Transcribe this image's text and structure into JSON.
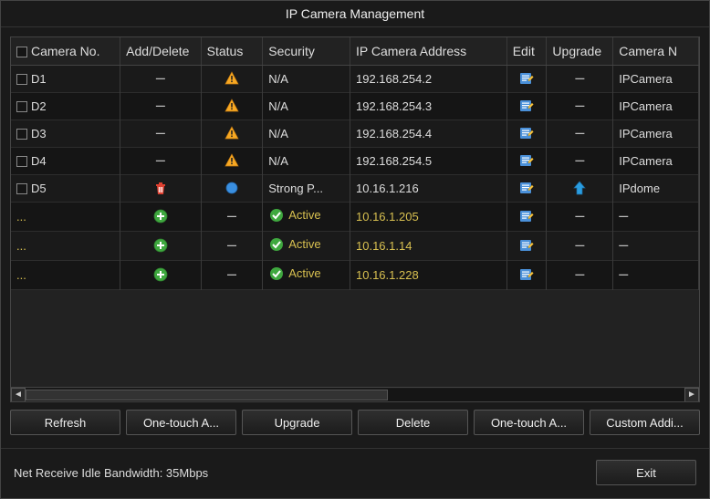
{
  "window": {
    "title": "IP Camera Management"
  },
  "columns": {
    "camera_no": "Camera No.",
    "add_delete": "Add/Delete",
    "status": "Status",
    "security": "Security",
    "ip_address": "IP Camera Address",
    "edit": "Edit",
    "upgrade": "Upgrade",
    "camera_n": "Camera N"
  },
  "column_widths": {
    "camera_no": 115,
    "add_delete": 85,
    "status": 65,
    "security": 92,
    "ip_address": 165,
    "edit": 42,
    "upgrade": 70,
    "camera_n": 90
  },
  "rows": [
    {
      "id": "D1",
      "checkbox": true,
      "dots": false,
      "action": "delete-dash",
      "status": "warn",
      "security": "N/A",
      "security_active": false,
      "ip": "192.168.254.2",
      "edit": "edit",
      "upgrade": "dash",
      "name": "IPCamera"
    },
    {
      "id": "D2",
      "checkbox": true,
      "dots": false,
      "action": "delete-dash",
      "status": "warn",
      "security": "N/A",
      "security_active": false,
      "ip": "192.168.254.3",
      "edit": "edit",
      "upgrade": "dash",
      "name": "IPCamera"
    },
    {
      "id": "D3",
      "checkbox": true,
      "dots": false,
      "action": "delete-dash",
      "status": "warn",
      "security": "N/A",
      "security_active": false,
      "ip": "192.168.254.4",
      "edit": "edit",
      "upgrade": "dash",
      "name": "IPCamera"
    },
    {
      "id": "D4",
      "checkbox": true,
      "dots": false,
      "action": "delete-dash",
      "status": "warn",
      "security": "N/A",
      "security_active": false,
      "ip": "192.168.254.5",
      "edit": "edit",
      "upgrade": "dash",
      "name": "IPCamera"
    },
    {
      "id": "D5",
      "checkbox": true,
      "dots": false,
      "action": "trash",
      "status": "blue",
      "security": "Strong P...",
      "security_active": false,
      "ip": "10.16.1.216",
      "edit": "edit",
      "upgrade": "up",
      "name": "IPdome"
    },
    {
      "id": "...",
      "checkbox": false,
      "dots": true,
      "action": "add",
      "status": "dash",
      "security": "Active",
      "security_active": true,
      "ip": "10.16.1.205",
      "edit": "edit",
      "upgrade": "dash",
      "name": "–"
    },
    {
      "id": "...",
      "checkbox": false,
      "dots": true,
      "action": "add",
      "status": "dash",
      "security": "Active",
      "security_active": true,
      "ip": "10.16.1.14",
      "edit": "edit",
      "upgrade": "dash",
      "name": "–"
    },
    {
      "id": "...",
      "checkbox": false,
      "dots": true,
      "action": "add",
      "status": "dash",
      "security": "Active",
      "security_active": true,
      "ip": "10.16.1.228",
      "edit": "edit",
      "upgrade": "dash",
      "name": "–"
    }
  ],
  "toolbar": {
    "refresh": "Refresh",
    "onetouch_a1": "One-touch A...",
    "upgrade": "Upgrade",
    "delete": "Delete",
    "onetouch_a2": "One-touch A...",
    "custom_add": "Custom Addi..."
  },
  "footer": {
    "bandwidth": "Net Receive Idle Bandwidth: 35Mbps",
    "exit": "Exit"
  },
  "colors": {
    "warn_fill": "#f7a823",
    "warn_stroke": "#c87d10",
    "blue_fill": "#3a8fe0",
    "add_fill": "#3fa83f",
    "trash_fill": "#e04030",
    "edit_fill": "#4a90d9",
    "up_fill": "#2a9de0",
    "check_fill": "#3fa83f",
    "yellow_text": "#d8c050"
  }
}
